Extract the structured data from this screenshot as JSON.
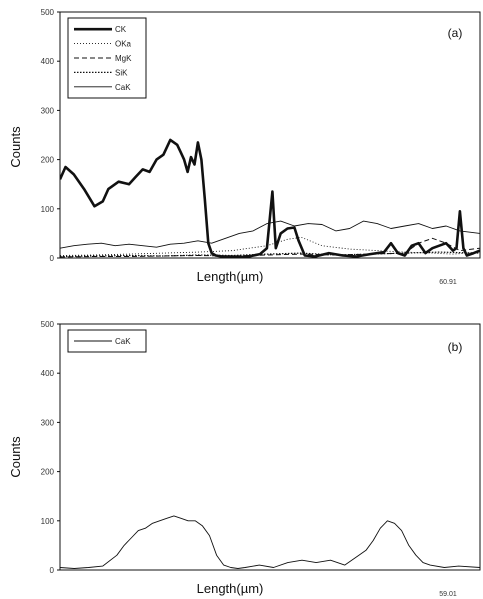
{
  "chart_data": [
    {
      "type": "line",
      "panel_label": "(a)",
      "xlabel": "Length(µm)",
      "ylabel": "Counts",
      "x_end_label": "60.91",
      "xlim": [
        0,
        60.91
      ],
      "ylim": [
        0,
        500
      ],
      "yticks": [
        0,
        100,
        200,
        300,
        400,
        500
      ],
      "grid": false,
      "legend": "top-left",
      "series": [
        {
          "name": "CK",
          "style": "thick",
          "x": [
            0,
            0.8,
            2,
            3.5,
            5,
            6.2,
            7,
            8.5,
            10,
            11,
            12,
            13,
            14,
            15,
            16,
            17,
            17.5,
            18,
            18.5,
            19,
            19.5,
            20,
            20.5,
            21,
            21.5,
            22,
            22.6,
            23.5,
            25,
            27,
            29,
            30,
            30.8,
            31.3,
            32,
            33,
            34,
            34.6,
            35.5,
            37,
            39,
            41,
            43,
            45,
            47,
            48,
            49,
            50,
            51,
            52,
            53,
            54,
            55,
            56,
            57,
            57.5,
            58,
            58.5,
            59,
            60,
            60.91
          ],
          "y": [
            160,
            185,
            170,
            140,
            105,
            115,
            140,
            155,
            150,
            165,
            180,
            175,
            200,
            210,
            240,
            230,
            215,
            200,
            175,
            205,
            190,
            235,
            200,
            120,
            30,
            10,
            5,
            3,
            3,
            2,
            8,
            20,
            135,
            20,
            50,
            60,
            62,
            35,
            5,
            3,
            10,
            5,
            3,
            8,
            12,
            30,
            10,
            5,
            25,
            30,
            10,
            20,
            25,
            30,
            15,
            20,
            95,
            20,
            5,
            10,
            15
          ]
        },
        {
          "name": "OKa",
          "style": "dotted",
          "x": [
            0,
            5,
            10,
            15,
            20,
            25,
            30,
            33,
            35,
            38,
            42,
            46,
            50,
            54,
            57,
            60.91
          ],
          "y": [
            5,
            6,
            8,
            10,
            12,
            15,
            25,
            38,
            42,
            25,
            18,
            15,
            12,
            10,
            8,
            12
          ]
        },
        {
          "name": "MgK",
          "style": "dashed",
          "x": [
            0,
            5,
            10,
            15,
            20,
            25,
            30,
            35,
            40,
            45,
            50,
            52,
            54,
            56,
            58,
            60.91
          ],
          "y": [
            2,
            3,
            3,
            4,
            5,
            4,
            6,
            8,
            6,
            8,
            10,
            30,
            40,
            30,
            15,
            20
          ]
        },
        {
          "name": "SiK",
          "style": "dense-dotted",
          "x": [
            0,
            5,
            10,
            15,
            20,
            25,
            30,
            35,
            40,
            45,
            50,
            55,
            60.91
          ],
          "y": [
            3,
            4,
            5,
            4,
            6,
            5,
            8,
            10,
            6,
            8,
            10,
            12,
            10
          ]
        },
        {
          "name": "CaK",
          "style": "thin",
          "x": [
            0,
            2,
            4,
            6,
            8,
            10,
            12,
            14,
            16,
            18,
            20,
            22,
            24,
            26,
            28,
            30,
            32,
            34,
            36,
            38,
            40,
            42,
            44,
            46,
            48,
            50,
            52,
            54,
            56,
            58,
            60.91
          ],
          "y": [
            20,
            25,
            28,
            30,
            25,
            28,
            25,
            22,
            28,
            30,
            35,
            30,
            40,
            50,
            55,
            70,
            75,
            65,
            70,
            68,
            55,
            60,
            75,
            70,
            60,
            65,
            70,
            60,
            65,
            55,
            50
          ]
        }
      ]
    },
    {
      "type": "line",
      "panel_label": "(b)",
      "xlabel": "Length(µm)",
      "ylabel": "Counts",
      "x_end_label": "59.01",
      "xlim": [
        0,
        59.01
      ],
      "ylim": [
        0,
        500
      ],
      "yticks": [
        0,
        100,
        200,
        300,
        400,
        500
      ],
      "grid": false,
      "legend": "top-left",
      "series": [
        {
          "name": "CaK",
          "style": "thin",
          "x": [
            0,
            2,
            4,
            6,
            8,
            9,
            10,
            11,
            12,
            13,
            14,
            15,
            16,
            17,
            18,
            19,
            20,
            21,
            22,
            23,
            24,
            25,
            26,
            28,
            30,
            32,
            34,
            36,
            38,
            40,
            42,
            43,
            44,
            45,
            46,
            47,
            48,
            49,
            50,
            51,
            52,
            54,
            56,
            59.01
          ],
          "y": [
            5,
            3,
            5,
            8,
            30,
            50,
            65,
            80,
            85,
            95,
            100,
            105,
            110,
            105,
            100,
            100,
            90,
            70,
            30,
            10,
            5,
            3,
            5,
            10,
            5,
            15,
            20,
            15,
            20,
            10,
            30,
            40,
            60,
            85,
            100,
            95,
            80,
            50,
            30,
            15,
            10,
            5,
            8,
            5
          ]
        }
      ]
    }
  ]
}
